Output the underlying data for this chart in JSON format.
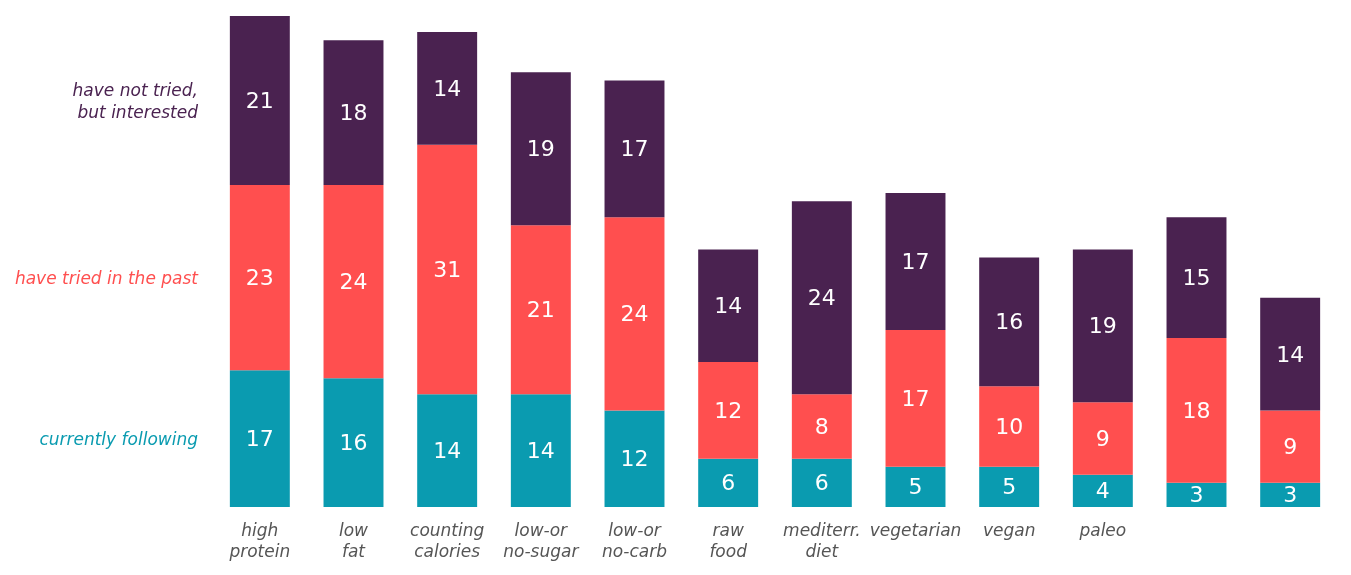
{
  "chart_data": {
    "type": "bar",
    "stacked": true,
    "data_labels": true,
    "legend": "left",
    "categories": [
      "high\nprotein",
      "low\nfat",
      "counting\ncalories",
      "low-or\nno-sugar",
      "low-or\nno-carb",
      "raw\nfood",
      "mediterr.\ndiet",
      "vegetarian",
      "vegan",
      "paleo",
      null,
      null
    ],
    "series": [
      {
        "name": "currently following",
        "color": "#0a9bb0",
        "values": [
          17,
          16,
          14,
          14,
          12,
          6,
          6,
          5,
          5,
          4,
          3,
          3
        ]
      },
      {
        "name": "have tried in the past",
        "color": "#ff4f4f",
        "values": [
          23,
          24,
          31,
          21,
          24,
          12,
          8,
          17,
          10,
          9,
          18,
          9
        ]
      },
      {
        "name": "have not tried,\nbut interested",
        "color": "#4a2250",
        "values": [
          21,
          18,
          14,
          19,
          17,
          14,
          24,
          17,
          16,
          19,
          15,
          14
        ]
      }
    ]
  }
}
